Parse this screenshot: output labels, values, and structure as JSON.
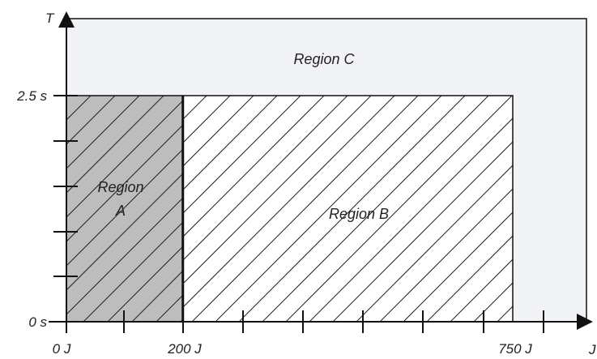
{
  "axes": {
    "y_label": "T",
    "x_label": "J",
    "y_ticks": {
      "top": "2.5 s",
      "bottom": "0 s"
    },
    "x_ticks": {
      "start": "0 J",
      "mid": "200 J",
      "end": "750 J"
    }
  },
  "regions": {
    "a": {
      "line1": "Region",
      "line2": "A"
    },
    "b": {
      "label": "Region B"
    },
    "c": {
      "label": "Region C"
    }
  },
  "colors": {
    "axis": "#111111",
    "region_a_fill": "#bdbdbd",
    "region_c_fill": "#f2f3f6",
    "hatch": "#222222"
  }
}
